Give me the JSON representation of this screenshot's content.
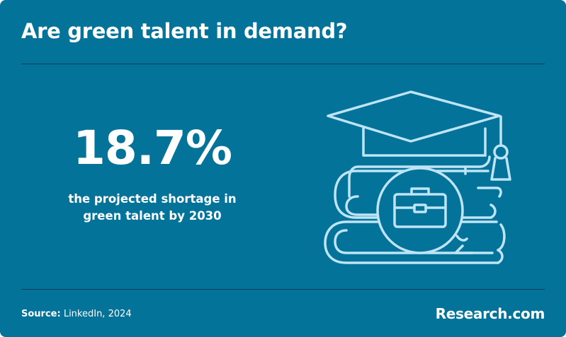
{
  "header": {
    "title": "Are green talent in demand?"
  },
  "stat": {
    "value": "18.7%",
    "description": "the projected shortage in green talent by 2030"
  },
  "illustration": {
    "icons": [
      "graduation-cap-icon",
      "book-stack-icon",
      "briefcase-icon"
    ]
  },
  "footer": {
    "source_label": "Source:",
    "source_text": " LinkedIn, 2024",
    "brand": "Research.com"
  },
  "colors": {
    "background": "#03739a",
    "divider": "#0b3b55",
    "icon_stroke": "#bfe4f6",
    "text": "#ffffff"
  }
}
